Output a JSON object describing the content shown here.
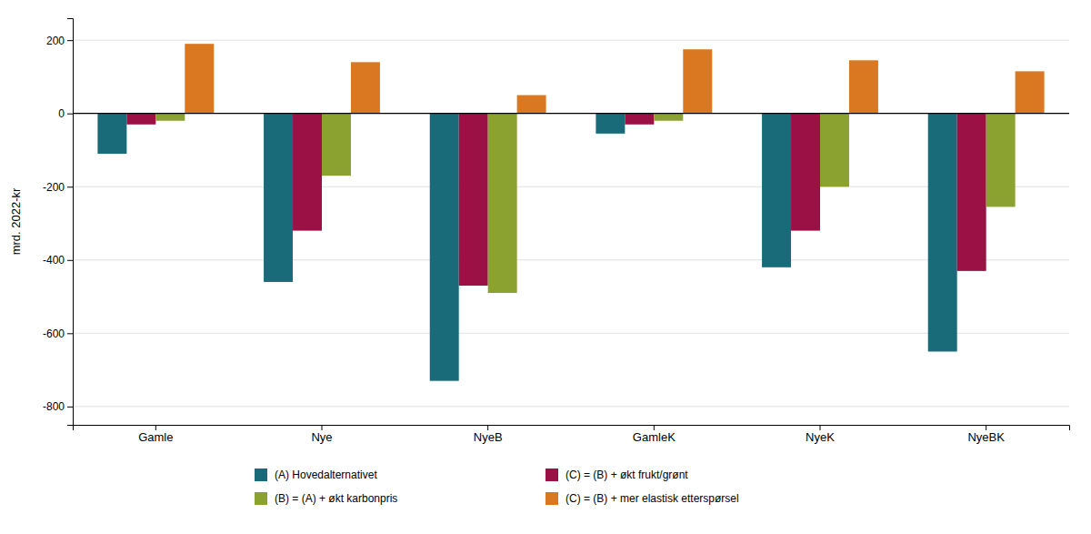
{
  "chart_data": {
    "type": "bar",
    "categories": [
      "Gamle",
      "Nye",
      "NyeB",
      "GamleK",
      "NyeK",
      "NyeBK"
    ],
    "series": [
      {
        "name": "(A) Hovedalternativet",
        "color": "#1a6b7a",
        "values": [
          -110,
          -460,
          -730,
          -55,
          -420,
          -650
        ]
      },
      {
        "name": "(C) = (B) + økt frukt/grønt",
        "color": "#9b1045",
        "values": [
          -30,
          -320,
          -470,
          -30,
          -320,
          -430
        ]
      },
      {
        "name": "(B) = (A) + økt karbonpris",
        "color": "#8ba230",
        "values": [
          -20,
          -170,
          -490,
          -20,
          -200,
          -255
        ]
      },
      {
        "name": "(C) = (B) + mer elastisk etterspørsel",
        "color": "#d97820",
        "values": [
          190,
          140,
          50,
          175,
          145,
          115
        ]
      }
    ],
    "ylabel": "mrd. 2022-kr",
    "ylim": [
      -850,
      260
    ],
    "yticks": [
      -800,
      -600,
      -400,
      -200,
      0,
      200
    ],
    "grid": true
  }
}
